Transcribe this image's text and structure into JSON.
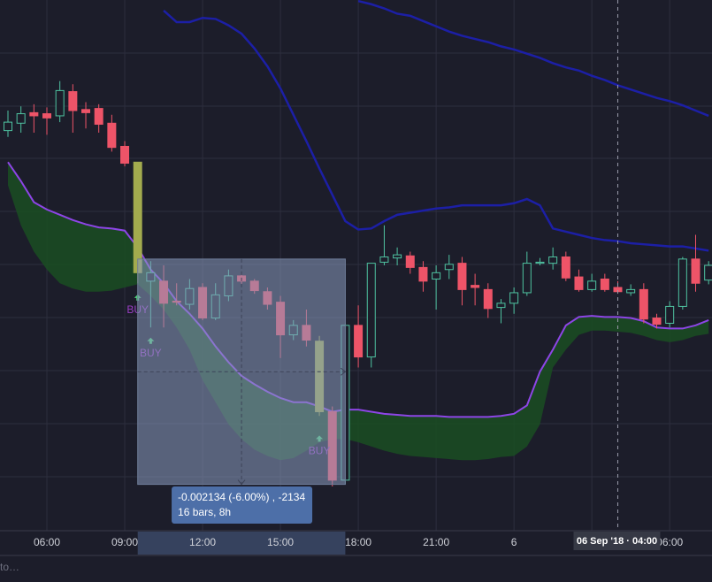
{
  "chart_data": {
    "type": "candlestick",
    "categories": [
      null,
      null,
      null,
      "06:00",
      null,
      null,
      null,
      null,
      null,
      "09:00",
      null,
      null,
      null,
      null,
      null,
      "12:00",
      null,
      null,
      null,
      null,
      null,
      "15:00",
      null,
      null,
      null,
      null,
      null,
      "18:00",
      null,
      null,
      null,
      null,
      null,
      "21:00",
      null,
      null,
      null,
      null,
      null,
      "6",
      null,
      null,
      null,
      null,
      null,
      null,
      null,
      null,
      null,
      null,
      null,
      "06:00",
      null,
      null,
      null
    ],
    "ohlc": [
      [
        0.03679,
        0.03698,
        0.03673,
        0.03687
      ],
      [
        0.03686,
        0.03702,
        0.03677,
        0.03695
      ],
      [
        0.03696,
        0.03704,
        0.03677,
        0.03693
      ],
      [
        0.03695,
        0.03701,
        0.03675,
        0.03691
      ],
      [
        0.03693,
        0.03726,
        0.03687,
        0.03717
      ],
      [
        0.03716,
        0.03723,
        0.03677,
        0.03698
      ],
      [
        0.03699,
        0.03706,
        0.03681,
        0.03696
      ],
      [
        0.037,
        0.03704,
        0.03677,
        0.03685
      ],
      [
        0.03686,
        0.03694,
        0.03659,
        0.03663
      ],
      [
        0.03664,
        0.03669,
        0.03645,
        0.03648
      ],
      [
        0.03649,
        0.03649,
        0.03534,
        0.03544
      ],
      [
        0.03536,
        0.03555,
        0.03492,
        0.03544
      ],
      [
        0.03536,
        0.03551,
        0.03492,
        0.03515
      ],
      [
        0.03517,
        0.03534,
        0.03513,
        0.03516
      ],
      [
        0.03514,
        0.03538,
        0.03509,
        0.03529
      ],
      [
        0.0353,
        0.03534,
        0.03499,
        0.03501
      ],
      [
        0.03501,
        0.03534,
        0.03499,
        0.03523
      ],
      [
        0.03522,
        0.03547,
        0.03517,
        0.03541
      ],
      [
        0.03541,
        0.03544,
        0.03533,
        0.03536
      ],
      [
        0.03536,
        0.03538,
        0.03524,
        0.03527
      ],
      [
        0.03526,
        0.0353,
        0.03509,
        0.03514
      ],
      [
        0.03516,
        0.03522,
        0.03463,
        0.03485
      ],
      [
        0.03485,
        0.03499,
        0.0348,
        0.03494
      ],
      [
        0.03494,
        0.03509,
        0.03474,
        0.0348
      ],
      [
        0.03479,
        0.03484,
        0.03408,
        0.03412
      ],
      [
        0.03412,
        0.03417,
        0.03341,
        0.03347
      ],
      [
        0.03347,
        0.03496,
        0.03343,
        0.03494
      ],
      [
        0.03494,
        0.03513,
        0.03454,
        0.03464
      ],
      [
        0.03464,
        0.03553,
        0.03454,
        0.03553
      ],
      [
        0.03554,
        0.03589,
        0.03551,
        0.03559
      ],
      [
        0.03558,
        0.03568,
        0.03551,
        0.03561
      ],
      [
        0.0356,
        0.03564,
        0.03543,
        0.03549
      ],
      [
        0.03549,
        0.03555,
        0.03526,
        0.03536
      ],
      [
        0.03538,
        0.03551,
        0.03509,
        0.03544
      ],
      [
        0.03547,
        0.03561,
        0.03538,
        0.03552
      ],
      [
        0.03553,
        0.03559,
        0.03513,
        0.03528
      ],
      [
        0.03532,
        0.03543,
        0.03513,
        0.0353
      ],
      [
        0.03528,
        0.03534,
        0.03501,
        0.0351
      ],
      [
        0.03511,
        0.03519,
        0.03496,
        0.03515
      ],
      [
        0.03515,
        0.0353,
        0.03505,
        0.03525
      ],
      [
        0.03525,
        0.03564,
        0.03522,
        0.03553
      ],
      [
        0.03553,
        0.03558,
        0.03551,
        0.03554
      ],
      [
        0.03553,
        0.03568,
        0.03547,
        0.03559
      ],
      [
        0.03559,
        0.03564,
        0.03536,
        0.03539
      ],
      [
        0.0354,
        0.03547,
        0.03526,
        0.03528
      ],
      [
        0.03528,
        0.03543,
        0.03526,
        0.03536
      ],
      [
        0.03538,
        0.03543,
        0.03526,
        0.03528
      ],
      [
        0.0353,
        0.03536,
        0.03524,
        0.03526
      ],
      [
        0.03525,
        0.03533,
        0.03522,
        0.03528
      ],
      [
        0.03528,
        0.03534,
        0.03496,
        0.035
      ],
      [
        0.03501,
        0.03505,
        0.03491,
        0.03495
      ],
      [
        0.03496,
        0.03517,
        0.03492,
        0.03512
      ],
      [
        0.03512,
        0.03559,
        0.03509,
        0.03557
      ],
      [
        0.03557,
        0.0358,
        0.03526,
        0.03534
      ],
      [
        0.03537,
        0.03555,
        0.03533,
        0.03551
      ]
    ],
    "up_color": "#4fc3a1",
    "down_color": "#ee5468",
    "highlight_color": "#a3ab4e",
    "highlight": [
      10,
      24
    ],
    "ylim": [
      0.03299,
      0.03803
    ],
    "series": [
      {
        "color": "#8d45e6",
        "values": [
          0.03649,
          0.03631,
          0.03611,
          0.03604,
          0.03599,
          0.03594,
          0.0359,
          0.03587,
          0.03586,
          0.03584,
          0.03568,
          0.03547,
          0.03534,
          0.03517,
          0.03505,
          0.03491,
          0.03474,
          0.03459,
          0.03446,
          0.03438,
          0.03431,
          0.03425,
          0.03421,
          0.03421,
          0.03417,
          0.03412,
          0.03414,
          0.03414,
          0.03412,
          0.0341,
          0.03409,
          0.03408,
          0.03408,
          0.03408,
          0.03407,
          0.03407,
          0.03407,
          0.03407,
          0.03408,
          0.0341,
          0.03418,
          0.0345,
          0.03471,
          0.03494,
          0.03502,
          0.03503,
          0.03502,
          0.03502,
          0.03501,
          0.03498,
          0.03492,
          0.03491,
          0.03491,
          0.03494,
          0.03499
        ]
      },
      {
        "color": "#1c1fa6",
        "values": [
          null,
          null,
          null,
          null,
          null,
          null,
          null,
          null,
          null,
          null,
          null,
          null,
          0.03793,
          0.03782,
          0.03782,
          0.03786,
          0.03785,
          0.03779,
          0.03771,
          0.03757,
          0.0374,
          0.03719,
          0.03694,
          0.03669,
          0.03643,
          0.03618,
          0.03593,
          0.03585,
          0.03586,
          0.03593,
          0.03599,
          0.03601,
          0.03603,
          0.03605,
          0.03606,
          0.03608,
          0.03608,
          0.03608,
          0.03608,
          0.0361,
          0.03614,
          0.03608,
          0.03586,
          0.03583,
          0.0358,
          0.03577,
          0.03575,
          0.03574,
          0.03572,
          0.03571,
          0.0357,
          0.03569,
          0.03569,
          0.03567,
          0.03565
        ]
      },
      {
        "color": "#1c1fa6",
        "values": [
          null,
          null,
          null,
          null,
          null,
          null,
          null,
          null,
          null,
          null,
          null,
          null,
          null,
          null,
          null,
          null,
          null,
          null,
          null,
          null,
          null,
          null,
          null,
          null,
          null,
          null,
          null,
          0.03802,
          0.03799,
          0.03795,
          0.0379,
          0.03788,
          0.03783,
          0.03778,
          0.03773,
          0.03769,
          0.03766,
          0.03763,
          0.03759,
          0.03756,
          0.03752,
          0.03748,
          0.03743,
          0.03739,
          0.03736,
          0.03731,
          0.03727,
          0.03722,
          0.03718,
          0.03714,
          0.0371,
          0.03707,
          0.03703,
          0.03698,
          0.03693
        ]
      }
    ],
    "cloud": {
      "color": "#1a4d22",
      "values": [
        0.03627,
        0.03589,
        0.03564,
        0.03547,
        0.03534,
        0.03529,
        0.03526,
        0.03526,
        0.03527,
        0.0353,
        0.03533,
        0.03522,
        0.03509,
        0.03492,
        0.03471,
        0.03442,
        0.03421,
        0.034,
        0.03386,
        0.03376,
        0.0337,
        0.03366,
        0.03368,
        0.03375,
        0.03383,
        0.03386,
        0.03386,
        0.03383,
        0.03379,
        0.03375,
        0.03372,
        0.0337,
        0.03369,
        0.03368,
        0.03367,
        0.03366,
        0.03366,
        0.03367,
        0.03369,
        0.0337,
        0.03379,
        0.034,
        0.03454,
        0.03471,
        0.03485,
        0.03489,
        0.03489,
        0.03488,
        0.03487,
        0.03484,
        0.0348,
        0.03478,
        0.0348,
        0.03484,
        0.03486
      ]
    },
    "signals": [
      {
        "label": "BUY",
        "index": 10,
        "price": 0.0352
      },
      {
        "label": "BUY",
        "index": 11,
        "price": 0.03479
      },
      {
        "label": "BUY",
        "index": 24,
        "price": 0.03386
      }
    ],
    "signal_color": "#4fd17a",
    "signal_label_color": "#9a3fc4",
    "measure": {
      "label": "-0.002134 (-6.00%) , -2134",
      "sublabel": "16 bars, 8h",
      "start_index": 10,
      "end_index": 26,
      "start_price": 0.03557,
      "end_price": 0.03343
    },
    "crosshair": {
      "label": "06 Sep '18 · 04:00",
      "index": 47
    },
    "footer_text": "to…"
  }
}
